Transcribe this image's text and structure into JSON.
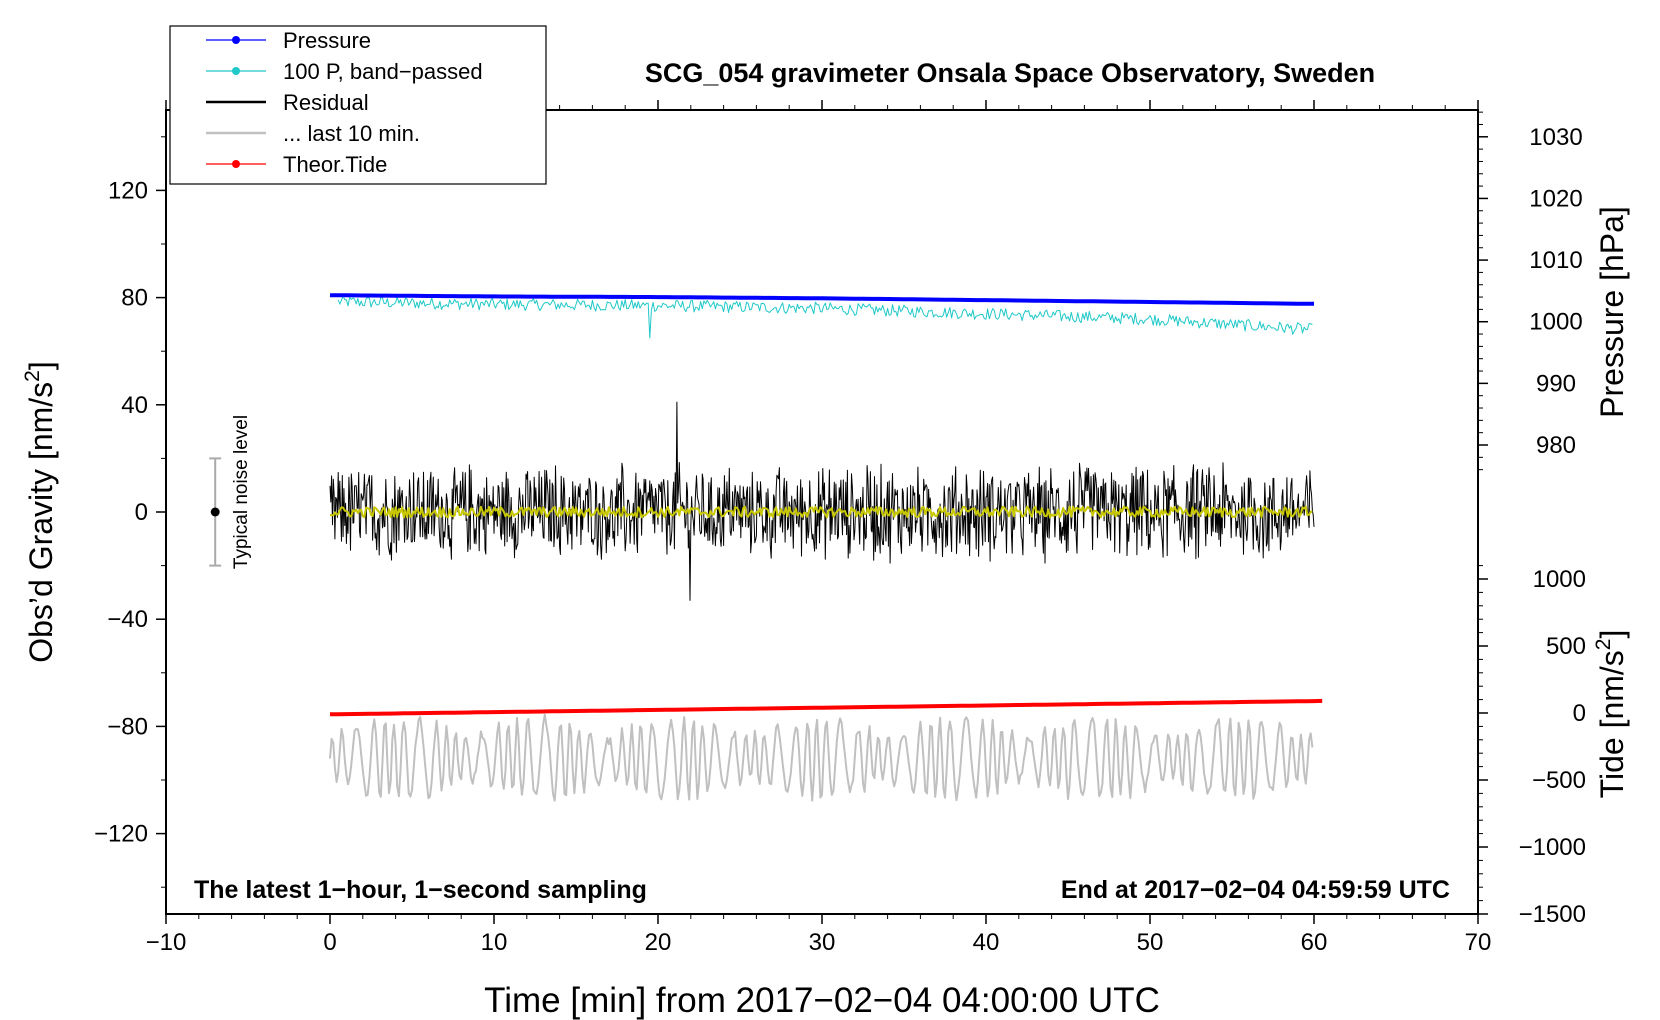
{
  "chart_data": {
    "type": "line",
    "title": "SCG_054 gravimeter Onsala Space Observatory, Sweden",
    "xlabel": "Time [min] from 2017−02−04 04:00:00 UTC",
    "ylabel_left_main": "Obs’d Gravity [nm/s",
    "ylabel_left_sup": "2",
    "ylabel_left_tail": "]",
    "ylabel_right_pressure": "Pressure [hPa]",
    "ylabel_right_tide_main": "Tide [nm/s",
    "ylabel_right_tide_sup": "2",
    "ylabel_right_tide_tail": "]",
    "xlim": [
      -10,
      70
    ],
    "ylim_left": [
      -150,
      150
    ],
    "x_ticks": [
      -10,
      0,
      10,
      20,
      30,
      40,
      50,
      60,
      70
    ],
    "x_tick_labels": [
      "−10",
      "0",
      "10",
      "20",
      "30",
      "40",
      "50",
      "60",
      "70"
    ],
    "left_ticks": [
      120,
      80,
      40,
      0,
      -40,
      -80,
      -120
    ],
    "left_tick_labels": [
      "120",
      "80",
      "40",
      "0",
      "−40",
      "−80",
      "−120"
    ],
    "pressure_axis": {
      "ticks": [
        1030,
        1020,
        1010,
        1000,
        990,
        980
      ],
      "tick_labels": [
        "1030",
        "1020",
        "1010",
        "1000",
        "990",
        "980"
      ],
      "ref_value": 1030,
      "ref_left": 140,
      "left_per_unit": 2.3
    },
    "tide_axis": {
      "ticks": [
        1000,
        500,
        0,
        -500,
        -1000,
        -1500
      ],
      "tick_labels": [
        "1000",
        "500",
        "0",
        "−500",
        "−1000",
        "−1500"
      ],
      "ref_value": 0,
      "ref_left": -75,
      "left_per_unit": 0.05
    },
    "series": [
      {
        "name": "Pressure",
        "color": "#0000ff",
        "units": "hPa",
        "x": [
          0,
          10,
          20,
          30,
          40,
          50,
          60
        ],
        "values": [
          1004.3,
          1004.1,
          1004.0,
          1003.8,
          1003.5,
          1003.2,
          1002.9
        ]
      },
      {
        "name": "100 P, band−passed",
        "color": "#20c8c8",
        "units": "nm/s2",
        "x": [
          0,
          10,
          20,
          30,
          40,
          50,
          60
        ],
        "values": [
          78.5,
          77.5,
          77,
          76,
          74,
          72,
          68
        ]
      },
      {
        "name": "Residual",
        "color": "#000000",
        "units": "nm/s2",
        "noise_amplitude": 15,
        "max": 41,
        "min": -33
      },
      {
        "name": "... last 10 min.",
        "color": "#c0c0c0",
        "units": "nm/s2",
        "center": -92,
        "amplitude": 9
      },
      {
        "name": "Theor.Tide",
        "color": "#ff0000",
        "units": "nm/s2",
        "x": [
          0,
          60.5
        ],
        "values": [
          -10,
          90
        ]
      },
      {
        "name": "smoothed residual",
        "color": "#c8c800",
        "units": "nm/s2",
        "center": 0,
        "amplitude": 2
      }
    ],
    "legend": [
      "Pressure",
      "100 P, band−passed",
      "Residual",
      "... last 10 min.",
      "Theor.Tide"
    ],
    "legend_position": "top-left",
    "noise_bar": {
      "label": "Typical noise level",
      "x": -7,
      "center": 0,
      "half_range": 20
    },
    "annotations": {
      "bottom_left": "The latest 1−hour, 1−second sampling",
      "bottom_right": "End at 2017−02−04 04:59:59 UTC"
    }
  }
}
